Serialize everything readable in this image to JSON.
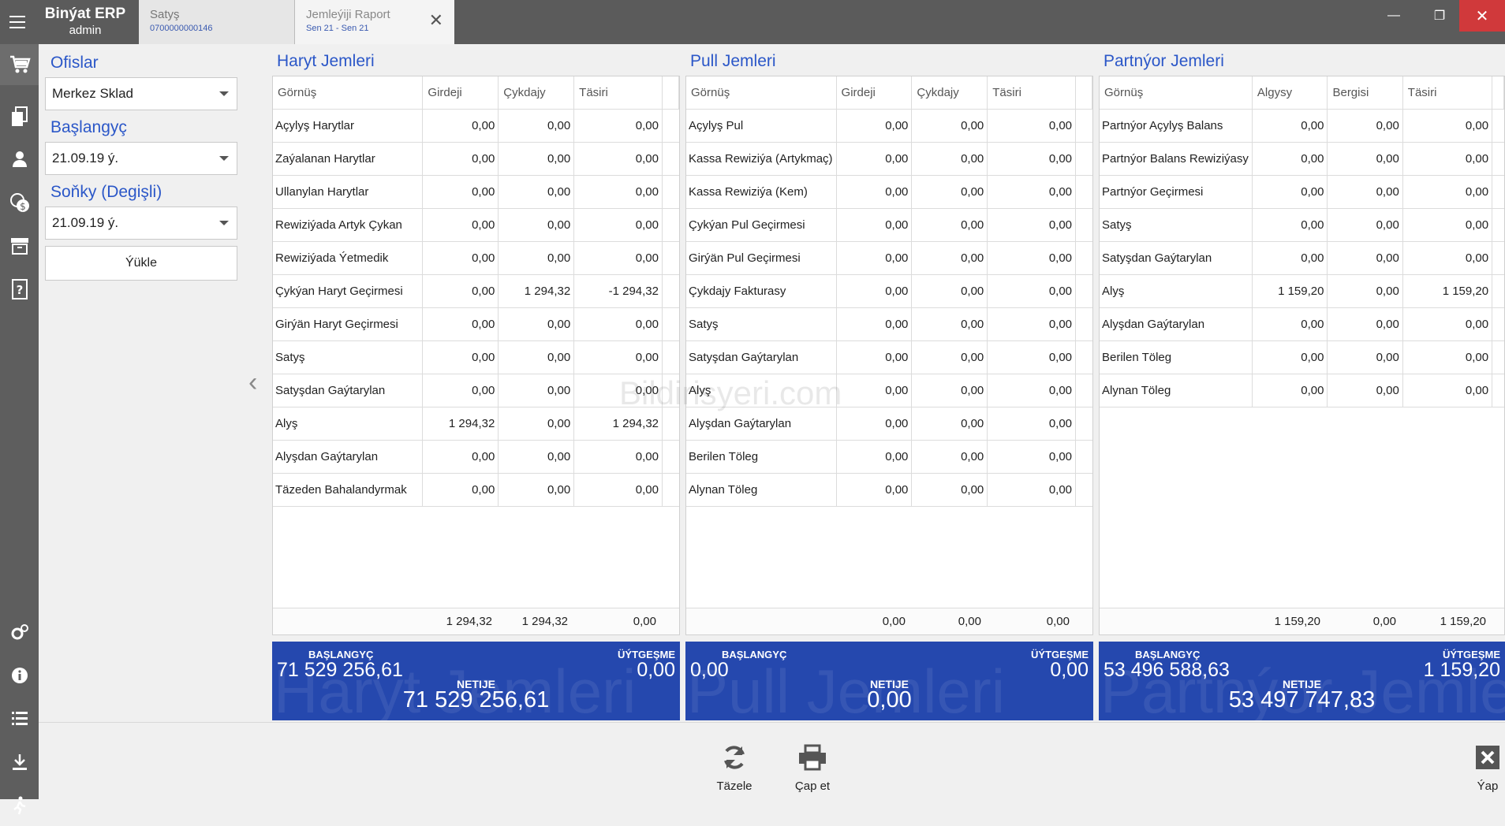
{
  "app": {
    "name": "Binýat ERP",
    "user": "admin"
  },
  "tabs": [
    {
      "title": "Satyş",
      "subtitle": "0700000000146"
    },
    {
      "title": "Jemleýiji Raport",
      "subtitle": "Sen 21 - Sen 21"
    }
  ],
  "filters": {
    "office_label": "Ofislar",
    "office_value": "Merkez Sklad",
    "start_label": "Başlangyç",
    "start_value": "21.09.19 ý.",
    "end_label": "Soňky (Degişli)",
    "end_value": "21.09.19 ý.",
    "load_label": "Ýükle"
  },
  "panels": {
    "haryt": {
      "title": "Haryt Jemleri",
      "columns": [
        "Görnüş",
        "Girdeji",
        "Çykdajy",
        "Täsiri"
      ],
      "rows": [
        [
          "Açylyş Harytlar",
          "0,00",
          "0,00",
          "0,00"
        ],
        [
          "Zaýalanan Harytlar",
          "0,00",
          "0,00",
          "0,00"
        ],
        [
          "Ullanylan Harytlar",
          "0,00",
          "0,00",
          "0,00"
        ],
        [
          "Rewiziýada Artyk Çykan",
          "0,00",
          "0,00",
          "0,00"
        ],
        [
          "Rewiziýada Ýetmedik",
          "0,00",
          "0,00",
          "0,00"
        ],
        [
          "Çykýan Haryt Geçirmesi",
          "0,00",
          "1 294,32",
          "-1 294,32"
        ],
        [
          "Girýän Haryt Geçirmesi",
          "0,00",
          "0,00",
          "0,00"
        ],
        [
          "Satyş",
          "0,00",
          "0,00",
          "0,00"
        ],
        [
          "Satyşdan Gaýtarylan",
          "0,00",
          "0,00",
          "0,00"
        ],
        [
          "Alyş",
          "1 294,32",
          "0,00",
          "1 294,32"
        ],
        [
          "Alyşdan Gaýtarylan",
          "0,00",
          "0,00",
          "0,00"
        ],
        [
          "Täzeden Bahalandyrmak",
          "0,00",
          "0,00",
          "0,00"
        ]
      ],
      "totals": [
        "1 294,32",
        "1 294,32",
        "0,00"
      ],
      "summary": {
        "start_label": "BAŞLANGYÇ",
        "start_value": "71 529 256,61",
        "change_label": "ÜÝTGEŞME",
        "change_value": "0,00",
        "net_label": "NETIJE",
        "net_value": "71 529 256,61",
        "watermark": "Haryt Jemleri"
      }
    },
    "pull": {
      "title": "Pull Jemleri",
      "columns": [
        "Görnüş",
        "Girdeji",
        "Çykdajy",
        "Täsiri"
      ],
      "rows": [
        [
          "Açylyş Pul",
          "0,00",
          "0,00",
          "0,00"
        ],
        [
          "Kassa Rewiziýa (Artykmaç)",
          "0,00",
          "0,00",
          "0,00"
        ],
        [
          "Kassa Rewiziýa (Kem)",
          "0,00",
          "0,00",
          "0,00"
        ],
        [
          "Çykýan Pul Geçirmesi",
          "0,00",
          "0,00",
          "0,00"
        ],
        [
          "Girýän Pul Geçirmesi",
          "0,00",
          "0,00",
          "0,00"
        ],
        [
          "Çykdajy Fakturasy",
          "0,00",
          "0,00",
          "0,00"
        ],
        [
          "Satyş",
          "0,00",
          "0,00",
          "0,00"
        ],
        [
          "Satyşdan Gaýtarylan",
          "0,00",
          "0,00",
          "0,00"
        ],
        [
          "Alyş",
          "0,00",
          "0,00",
          "0,00"
        ],
        [
          "Alyşdan Gaýtarylan",
          "0,00",
          "0,00",
          "0,00"
        ],
        [
          "Berilen Töleg",
          "0,00",
          "0,00",
          "0,00"
        ],
        [
          "Alynan Töleg",
          "0,00",
          "0,00",
          "0,00"
        ]
      ],
      "totals": [
        "0,00",
        "0,00",
        "0,00"
      ],
      "summary": {
        "start_label": "BAŞLANGYÇ",
        "start_value": "0,00",
        "change_label": "ÜÝTGEŞME",
        "change_value": "0,00",
        "net_label": "NETIJE",
        "net_value": "0,00",
        "watermark": "Pull Jemleri"
      }
    },
    "partnyor": {
      "title": "Partnýor Jemleri",
      "columns": [
        "Görnüş",
        "Algysy",
        "Bergisi",
        "Täsiri"
      ],
      "rows": [
        [
          "Partnýor Açylyş Balans",
          "0,00",
          "0,00",
          "0,00"
        ],
        [
          "Partnýor Balans Rewiziýasy",
          "0,00",
          "0,00",
          "0,00"
        ],
        [
          "Partnýor Geçirmesi",
          "0,00",
          "0,00",
          "0,00"
        ],
        [
          "Satyş",
          "0,00",
          "0,00",
          "0,00"
        ],
        [
          "Satyşdan Gaýtarylan",
          "0,00",
          "0,00",
          "0,00"
        ],
        [
          "Alyş",
          "1 159,20",
          "0,00",
          "1 159,20"
        ],
        [
          "Alyşdan Gaýtarylan",
          "0,00",
          "0,00",
          "0,00"
        ],
        [
          "Berilen Töleg",
          "0,00",
          "0,00",
          "0,00"
        ],
        [
          "Alynan Töleg",
          "0,00",
          "0,00",
          "0,00"
        ]
      ],
      "totals": [
        "1 159,20",
        "0,00",
        "1 159,20"
      ],
      "summary": {
        "start_label": "BAŞLANGYÇ",
        "start_value": "53 496 588,63",
        "change_label": "ÜÝTGEŞME",
        "change_value": "1 159,20",
        "net_label": "NETIJE",
        "net_value": "53 497 747,83",
        "watermark": "Partnýor Jemleri"
      }
    }
  },
  "watermark": "Bildirisyeri.com",
  "bottom": {
    "refresh_label": "Täzele",
    "print_label": "Çap et",
    "close_label": "Ýap"
  },
  "colors": {
    "accent": "#2b57c8",
    "summary_bg": "#2548ae",
    "titlebar": "#5b5b5b",
    "close_red": "#d0393b"
  }
}
